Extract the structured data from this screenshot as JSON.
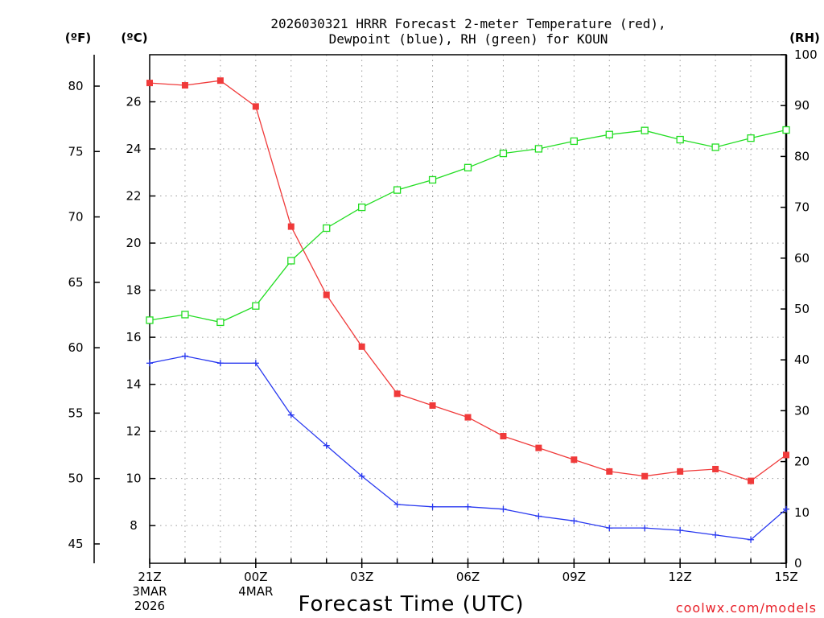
{
  "chart_data": {
    "type": "line",
    "title_line1": "2026030321 HRRR Forecast 2-meter Temperature (red),",
    "title_line2": "Dewpoint (blue), RH (green) for KOUN",
    "units": {
      "fahrenheit": "(ºF)",
      "celsius": "(ºC)",
      "rh": "(RH)"
    },
    "xlabel": "Forecast Time (UTC)",
    "credit": "coolwx.com/models",
    "x": [
      0,
      1,
      2,
      3,
      4,
      5,
      6,
      7,
      8,
      9,
      10,
      11,
      12,
      13,
      14,
      15,
      16,
      17,
      18
    ],
    "x_ticks": [
      {
        "x": 0,
        "lines": [
          "21Z",
          "3MAR",
          "2026"
        ]
      },
      {
        "x": 3,
        "lines": [
          "00Z",
          "4MAR"
        ]
      },
      {
        "x": 6,
        "lines": [
          "03Z"
        ]
      },
      {
        "x": 9,
        "lines": [
          "06Z"
        ]
      },
      {
        "x": 12,
        "lines": [
          "09Z"
        ]
      },
      {
        "x": 15,
        "lines": [
          "12Z"
        ]
      },
      {
        "x": 18,
        "lines": [
          "15Z"
        ]
      }
    ],
    "celsius_axis": {
      "ylim": [
        6.4,
        28.0
      ],
      "ticks": [
        8,
        10,
        12,
        14,
        16,
        18,
        20,
        22,
        24,
        26
      ]
    },
    "fahrenheit_axis": {
      "ticks": [
        45,
        50,
        55,
        60,
        65,
        70,
        75,
        80
      ]
    },
    "rh_axis": {
      "ylim": [
        0,
        100
      ],
      "ticks": [
        0,
        10,
        20,
        30,
        40,
        50,
        60,
        70,
        80,
        90,
        100
      ]
    },
    "series": [
      {
        "name": "2-meter Temperature",
        "axis": "celsius",
        "color": "#f03a3a",
        "marker": "filled-square",
        "values": [
          26.8,
          26.7,
          26.9,
          25.8,
          20.7,
          17.8,
          15.6,
          13.6,
          13.1,
          12.6,
          11.8,
          11.3,
          10.8,
          10.3,
          10.1,
          10.3,
          10.4,
          9.9,
          11.0
        ]
      },
      {
        "name": "Dewpoint",
        "axis": "celsius",
        "color": "#2838f0",
        "marker": "plus",
        "values": [
          14.9,
          15.2,
          14.9,
          14.9,
          12.7,
          11.4,
          10.1,
          8.9,
          8.8,
          8.8,
          8.7,
          8.4,
          8.2,
          7.9,
          7.9,
          7.8,
          7.6,
          7.4,
          8.7
        ]
      },
      {
        "name": "RH",
        "axis": "rh",
        "color": "#22dd22",
        "marker": "open-square",
        "values": [
          47.8,
          48.9,
          47.4,
          50.6,
          59.5,
          65.9,
          70.0,
          73.4,
          75.4,
          77.8,
          80.6,
          81.5,
          83.0,
          84.3,
          85.1,
          83.3,
          81.8,
          83.6,
          85.2
        ]
      }
    ]
  }
}
